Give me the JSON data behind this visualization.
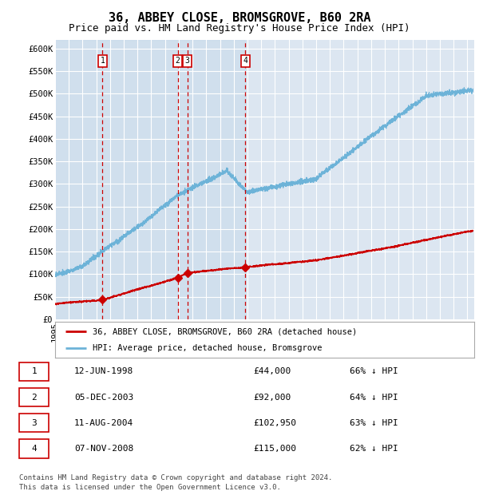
{
  "title": "36, ABBEY CLOSE, BROMSGROVE, B60 2RA",
  "subtitle": "Price paid vs. HM Land Registry's House Price Index (HPI)",
  "ylim": [
    0,
    620000
  ],
  "yticks": [
    0,
    50000,
    100000,
    150000,
    200000,
    250000,
    300000,
    350000,
    400000,
    450000,
    500000,
    550000,
    600000
  ],
  "ytick_labels": [
    "£0",
    "£50K",
    "£100K",
    "£150K",
    "£200K",
    "£250K",
    "£300K",
    "£350K",
    "£400K",
    "£450K",
    "£500K",
    "£550K",
    "£600K"
  ],
  "xlim_start": 1995.0,
  "xlim_end": 2025.5,
  "background_color": "#ffffff",
  "plot_bg_color": "#dce6f1",
  "grid_color": "#ffffff",
  "hpi_color": "#6db3d8",
  "price_color": "#cc0000",
  "vline_color": "#cc0000",
  "marker_box_color": "#cc0000",
  "shade_color": "#c5d9ea",
  "transactions": [
    {
      "id": 1,
      "date": "12-JUN-1998",
      "year": 1998.45,
      "price": 44000,
      "pct": "66%",
      "label": "1"
    },
    {
      "id": 2,
      "date": "05-DEC-2003",
      "year": 2003.92,
      "price": 92000,
      "pct": "64%",
      "label": "2"
    },
    {
      "id": 3,
      "date": "11-AUG-2004",
      "year": 2004.62,
      "price": 102950,
      "pct": "63%",
      "label": "3"
    },
    {
      "id": 4,
      "date": "07-NOV-2008",
      "year": 2008.85,
      "price": 115000,
      "pct": "62%",
      "label": "4"
    }
  ],
  "legend_label_red": "36, ABBEY CLOSE, BROMSGROVE, B60 2RA (detached house)",
  "legend_label_blue": "HPI: Average price, detached house, Bromsgrove",
  "footer": "Contains HM Land Registry data © Crown copyright and database right 2024.\nThis data is licensed under the Open Government Licence v3.0.",
  "title_fontsize": 11,
  "subtitle_fontsize": 9,
  "tick_fontsize": 7.5,
  "table_row_labels": [
    "1",
    "2",
    "3",
    "4"
  ],
  "table_dates": [
    "12-JUN-1998",
    "05-DEC-2003",
    "11-AUG-2004",
    "07-NOV-2008"
  ],
  "table_prices": [
    "£44,000",
    "£92,000",
    "£102,950",
    "£115,000"
  ],
  "table_pcts": [
    "66% ↓ HPI",
    "64% ↓ HPI",
    "63% ↓ HPI",
    "62% ↓ HPI"
  ]
}
